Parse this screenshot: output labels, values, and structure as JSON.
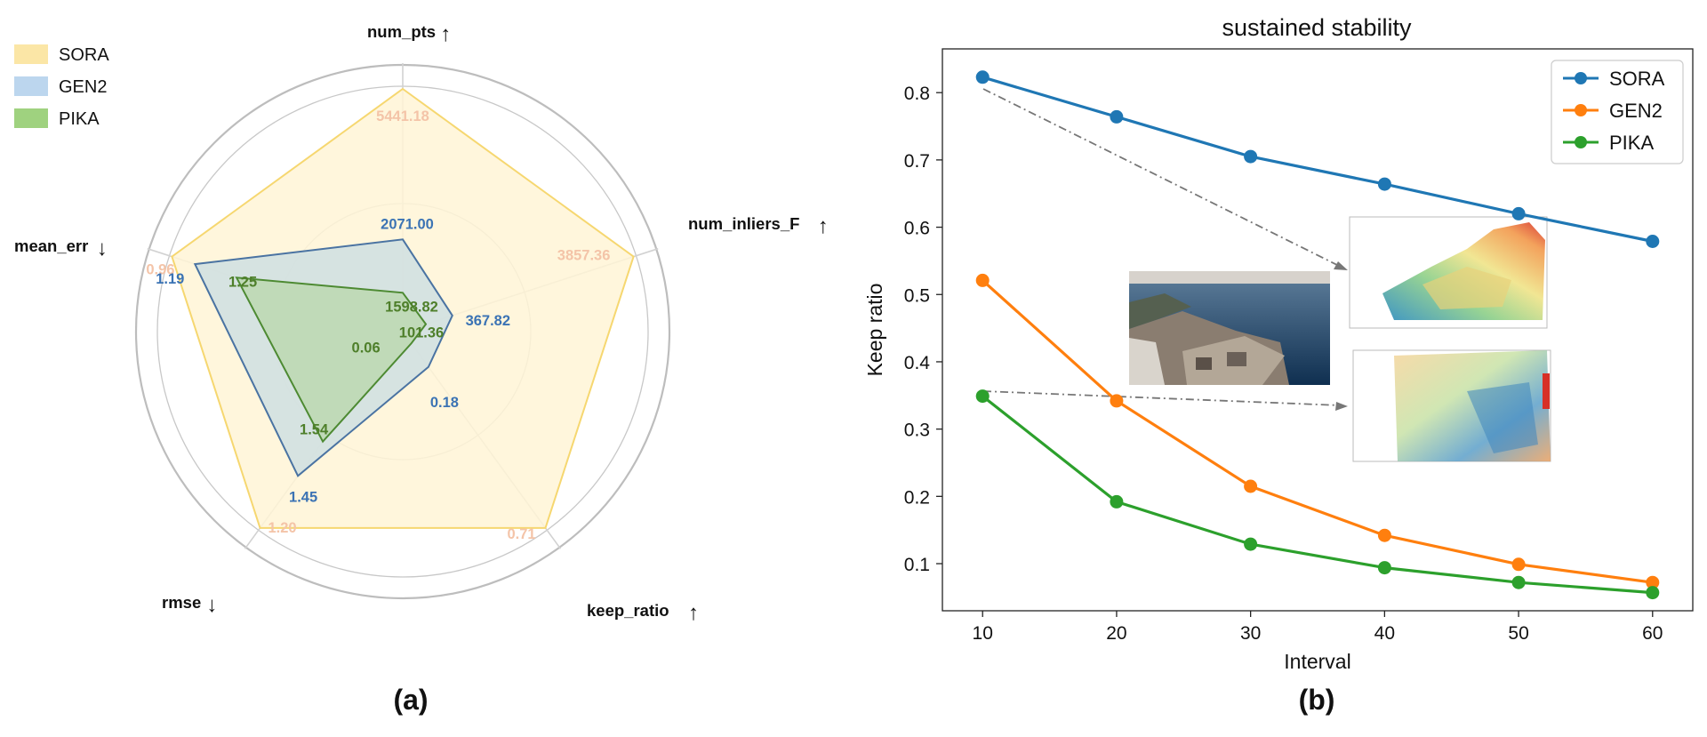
{
  "chart_data": [
    {
      "type": "radar",
      "caption": "(a)",
      "legend": [
        {
          "name": "SORA",
          "color": "#fbe6a6"
        },
        {
          "name": "GEN2",
          "color": "#bcd6ee"
        },
        {
          "name": "PIKA",
          "color": "#9fd27f"
        }
      ],
      "axes": [
        {
          "name": "num_pts",
          "arrow": "↑"
        },
        {
          "name": "num_inliers_F",
          "arrow": "↑"
        },
        {
          "name": "keep_ratio",
          "arrow": "↑"
        },
        {
          "name": "rmse",
          "arrow": "↓"
        },
        {
          "name": "mean_err",
          "arrow": "↓"
        }
      ],
      "series": [
        {
          "name": "SORA",
          "fill": "#fff4d6",
          "stroke": "#f6d770",
          "label_color": "#f4c4a8",
          "radii": [
            1.0,
            1.0,
            1.0,
            1.0,
            1.0
          ],
          "labels": [
            "5441.18",
            "3857.36",
            "0.71",
            "1.20",
            "0.96"
          ]
        },
        {
          "name": "GEN2",
          "fill": "#cfdfe2",
          "stroke": "#4a73a2",
          "label_color": "#3b73b4",
          "radii": [
            0.38,
            0.215,
            0.18,
            0.735,
            0.9
          ],
          "labels": [
            "2071.00",
            "367.82",
            "0.18",
            "1.45",
            "1.19"
          ]
        },
        {
          "name": "PIKA",
          "fill": "#bcd8b0",
          "stroke": "#4d8a32",
          "label_color": "#4e7f2a",
          "radii": [
            0.16,
            0.1,
            0.06,
            0.56,
            0.72
          ],
          "labels": [
            "1598.82",
            "101.36",
            "0.06",
            "1.54",
            "1.25"
          ]
        }
      ]
    },
    {
      "type": "line",
      "caption": "(b)",
      "title": "sustained stability",
      "xlabel": "Interval",
      "ylabel": "Keep ratio",
      "x": [
        10,
        20,
        30,
        40,
        50,
        60
      ],
      "xlim": [
        7,
        63
      ],
      "ylim": [
        0.03,
        0.865
      ],
      "xticks": [
        10,
        20,
        30,
        40,
        50,
        60
      ],
      "yticks": [
        0.1,
        0.2,
        0.3,
        0.4,
        0.5,
        0.6,
        0.7,
        0.8
      ],
      "series": [
        {
          "name": "SORA",
          "color": "#1f77b4",
          "values": [
            0.823,
            0.764,
            0.705,
            0.664,
            0.62,
            0.579
          ]
        },
        {
          "name": "GEN2",
          "color": "#ff7f0e",
          "values": [
            0.521,
            0.342,
            0.215,
            0.142,
            0.099,
            0.072
          ]
        },
        {
          "name": "PIKA",
          "color": "#2ca02c",
          "values": [
            0.349,
            0.192,
            0.129,
            0.094,
            0.072,
            0.057
          ]
        }
      ],
      "legend_position": "top-right"
    }
  ]
}
